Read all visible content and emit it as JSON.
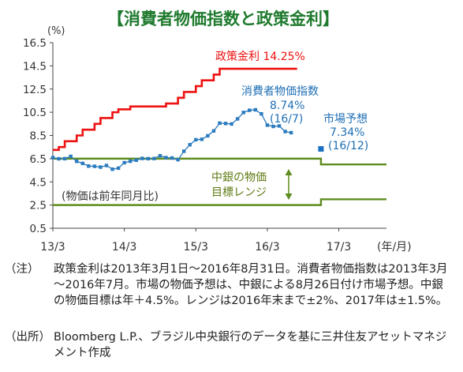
{
  "chart_data": {
    "type": "line",
    "title": "【消費者物価指数と政策金利】",
    "y_unit": "(%)",
    "x_unit": "(年/月)",
    "ylim": [
      0.5,
      16.5
    ],
    "yticks": [
      "16.5",
      "14.5",
      "12.5",
      "10.5",
      "8.5",
      "6.5",
      "4.5",
      "2.5",
      "0.5"
    ],
    "xlim": [
      "2013-03",
      "2017-11"
    ],
    "xticks": [
      {
        "label": "13/3",
        "x": "2013-03"
      },
      {
        "label": "14/3",
        "x": "2014-03"
      },
      {
        "label": "15/3",
        "x": "2015-03"
      },
      {
        "label": "16/3",
        "x": "2016-03"
      },
      {
        "label": "17/3",
        "x": "2017-03"
      }
    ],
    "grid": false,
    "series": [
      {
        "name": "政策金利",
        "label": "政策金利 14.25%",
        "color": "#ee1111",
        "style": "step",
        "points": [
          [
            "2013-03",
            7.25
          ],
          [
            "2013-04",
            7.5
          ],
          [
            "2013-05",
            8.0
          ],
          [
            "2013-07",
            8.5
          ],
          [
            "2013-08",
            9.0
          ],
          [
            "2013-10",
            9.5
          ],
          [
            "2013-11",
            10.0
          ],
          [
            "2014-01",
            10.5
          ],
          [
            "2014-02",
            10.75
          ],
          [
            "2014-04",
            11.0
          ],
          [
            "2014-10",
            11.25
          ],
          [
            "2014-12",
            11.75
          ],
          [
            "2015-01",
            12.25
          ],
          [
            "2015-03",
            12.75
          ],
          [
            "2015-04",
            13.25
          ],
          [
            "2015-06",
            13.75
          ],
          [
            "2015-07",
            14.25
          ],
          [
            "2016-08",
            14.25
          ]
        ]
      },
      {
        "name": "消費者物価指数",
        "label": "消費者物価指数",
        "value_label": "8.74%",
        "date_label": "(16/7)",
        "color": "#2b7bbf",
        "style": "line-markers",
        "points": [
          [
            "2013-03",
            6.59
          ],
          [
            "2013-04",
            6.49
          ],
          [
            "2013-05",
            6.5
          ],
          [
            "2013-06",
            6.7
          ],
          [
            "2013-07",
            6.27
          ],
          [
            "2013-08",
            6.09
          ],
          [
            "2013-09",
            5.86
          ],
          [
            "2013-10",
            5.84
          ],
          [
            "2013-11",
            5.77
          ],
          [
            "2013-12",
            5.91
          ],
          [
            "2014-01",
            5.59
          ],
          [
            "2014-02",
            5.68
          ],
          [
            "2014-03",
            6.15
          ],
          [
            "2014-04",
            6.28
          ],
          [
            "2014-05",
            6.37
          ],
          [
            "2014-06",
            6.52
          ],
          [
            "2014-07",
            6.5
          ],
          [
            "2014-08",
            6.51
          ],
          [
            "2014-09",
            6.75
          ],
          [
            "2014-10",
            6.59
          ],
          [
            "2014-11",
            6.56
          ],
          [
            "2014-12",
            6.41
          ],
          [
            "2015-01",
            7.14
          ],
          [
            "2015-02",
            7.7
          ],
          [
            "2015-03",
            8.13
          ],
          [
            "2015-04",
            8.17
          ],
          [
            "2015-05",
            8.47
          ],
          [
            "2015-06",
            8.89
          ],
          [
            "2015-07",
            9.56
          ],
          [
            "2015-08",
            9.53
          ],
          [
            "2015-09",
            9.49
          ],
          [
            "2015-10",
            9.93
          ],
          [
            "2015-11",
            10.48
          ],
          [
            "2015-12",
            10.67
          ],
          [
            "2016-01",
            10.71
          ],
          [
            "2016-02",
            10.36
          ],
          [
            "2016-03",
            9.39
          ],
          [
            "2016-04",
            9.28
          ],
          [
            "2016-05",
            9.32
          ],
          [
            "2016-06",
            8.84
          ],
          [
            "2016-07",
            8.74
          ]
        ]
      },
      {
        "name": "市場予想",
        "label": "市場予想",
        "value_label": "7.34%",
        "date_label": "(16/12)",
        "color": "#1a6fc4",
        "style": "marker",
        "points": [
          [
            "2016-12",
            7.34
          ]
        ]
      },
      {
        "name": "中銀の物価目標レンジ上限",
        "color": "#5e8c1e",
        "style": "step",
        "points": [
          [
            "2013-03",
            6.5
          ],
          [
            "2016-12",
            6.5
          ],
          [
            "2016-12",
            6.0
          ],
          [
            "2017-11",
            6.0
          ]
        ]
      },
      {
        "name": "中銀の物価目標レンジ下限",
        "color": "#5e8c1e",
        "style": "step",
        "points": [
          [
            "2013-03",
            2.5
          ],
          [
            "2016-12",
            2.5
          ],
          [
            "2016-12",
            3.0
          ],
          [
            "2017-11",
            3.0
          ]
        ]
      }
    ],
    "annotations": {
      "band_label_1": "中銀の物価",
      "band_label_2": "目標レンジ",
      "band_note": "(物価は前年同月比)"
    }
  },
  "notes": [
    {
      "label": "（注）",
      "text": "政策金利は2013年3月1日～2016年8月31日。消費者物価指数は2013年3月～2016年7月。市場の物価予想は、中銀による8月26日付け市場予想。中銀の物価目標は年＋4.5%。レンジは2016年末まで±2%、2017年は±1.5%。"
    },
    {
      "label": "（出所）",
      "text": "Bloomberg L.P.、ブラジル中央銀行のデータを基に三井住友アセットマネジメント作成"
    }
  ]
}
